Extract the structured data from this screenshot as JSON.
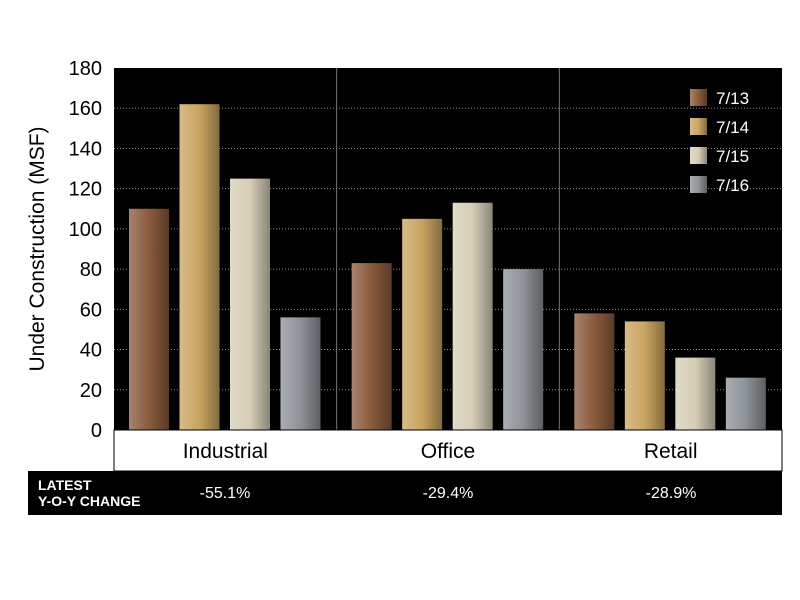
{
  "chart_data": {
    "type": "bar",
    "ylabel": "Under Construction (MSF)",
    "xlabel": "",
    "ylim": [
      0,
      180
    ],
    "yticks": [
      0,
      20,
      40,
      60,
      80,
      100,
      120,
      140,
      160,
      180
    ],
    "grid": true,
    "legend_position": "top-right",
    "categories": [
      "Industrial",
      "Office",
      "Retail"
    ],
    "series": [
      {
        "name": "7/13",
        "color": "#8a5a3c",
        "values": [
          110,
          83,
          58
        ]
      },
      {
        "name": "7/14",
        "color": "#c9a460",
        "values": [
          162,
          105,
          54
        ]
      },
      {
        "name": "7/15",
        "color": "#d6cdb6",
        "values": [
          125,
          113,
          36
        ]
      },
      {
        "name": "7/16",
        "color": "#8e9398",
        "values": [
          56,
          80,
          26
        ]
      }
    ]
  },
  "footer": {
    "label_line1": "LATEST",
    "label_line2": "Y-O-Y CHANGE",
    "changes": [
      "-55.1%",
      "-29.4%",
      "-28.9%"
    ]
  }
}
